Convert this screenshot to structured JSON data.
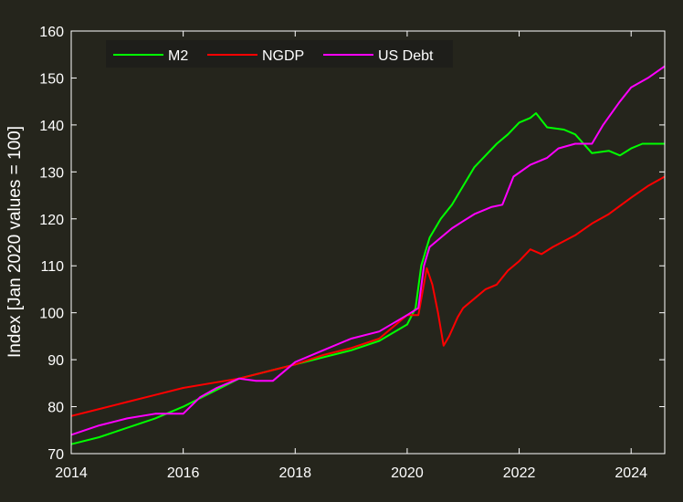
{
  "chart_data": {
    "type": "line",
    "title": "",
    "xlabel": "",
    "ylabel": "Index [Jan 2020 values = 100]",
    "xlim": [
      2014,
      2024.6
    ],
    "ylim": [
      70,
      160
    ],
    "xticks": [
      2014,
      2016,
      2018,
      2020,
      2022,
      2024
    ],
    "yticks": [
      70,
      80,
      90,
      100,
      110,
      120,
      130,
      140,
      150,
      160
    ],
    "grid": false,
    "legend_position": "top-left",
    "background_color": "#25251c",
    "axes_color": "#ffffff",
    "series": [
      {
        "name": "M2",
        "color": "#00ff00",
        "x": [
          2014.0,
          2014.5,
          2015.0,
          2015.5,
          2016.0,
          2016.5,
          2017.0,
          2017.5,
          2018.0,
          2018.5,
          2019.0,
          2019.5,
          2020.0,
          2020.15,
          2020.25,
          2020.4,
          2020.6,
          2020.8,
          2021.0,
          2021.2,
          2021.4,
          2021.6,
          2021.8,
          2022.0,
          2022.2,
          2022.3,
          2022.5,
          2022.8,
          2023.0,
          2023.3,
          2023.6,
          2023.8,
          2024.0,
          2024.2,
          2024.4,
          2024.6
        ],
        "y": [
          72,
          73.5,
          75.5,
          77.5,
          80,
          83,
          86,
          87.5,
          89,
          90.5,
          92,
          94,
          97.5,
          101,
          110,
          116,
          120,
          123,
          127,
          131,
          133.5,
          136,
          138,
          140.5,
          141.5,
          142.5,
          139.5,
          139,
          138,
          134,
          134.5,
          133.5,
          135,
          136,
          136,
          136
        ]
      },
      {
        "name": "NGDP",
        "color": "#ff0000",
        "x": [
          2014.0,
          2014.5,
          2015.0,
          2015.5,
          2016.0,
          2016.5,
          2017.0,
          2017.5,
          2018.0,
          2018.5,
          2019.0,
          2019.5,
          2020.0,
          2020.2,
          2020.35,
          2020.45,
          2020.55,
          2020.65,
          2020.75,
          2020.9,
          2021.0,
          2021.2,
          2021.4,
          2021.6,
          2021.8,
          2022.0,
          2022.2,
          2022.4,
          2022.6,
          2023.0,
          2023.3,
          2023.6,
          2024.0,
          2024.3,
          2024.6
        ],
        "y": [
          78,
          79.5,
          81,
          82.5,
          84,
          85,
          86,
          87.5,
          89,
          91,
          92.5,
          94.5,
          99.5,
          99.5,
          109.5,
          106,
          100,
          93,
          95,
          99,
          101,
          103,
          105,
          106,
          109,
          111,
          113.5,
          112.5,
          114,
          116.5,
          119,
          121,
          124.5,
          127,
          129
        ]
      },
      {
        "name": "US Debt",
        "color": "#ff00ff",
        "x": [
          2014.0,
          2014.5,
          2015.0,
          2015.5,
          2016.0,
          2016.3,
          2016.6,
          2017.0,
          2017.3,
          2017.6,
          2018.0,
          2018.5,
          2019.0,
          2019.5,
          2020.0,
          2020.2,
          2020.3,
          2020.4,
          2020.6,
          2020.8,
          2021.0,
          2021.2,
          2021.5,
          2021.7,
          2021.9,
          2022.2,
          2022.5,
          2022.7,
          2023.0,
          2023.3,
          2023.5,
          2023.8,
          2024.0,
          2024.3,
          2024.6
        ],
        "y": [
          74,
          76,
          77.5,
          78.5,
          78.5,
          82,
          84,
          86,
          85.5,
          85.5,
          89.5,
          92,
          94.5,
          96,
          99.5,
          101,
          110,
          114,
          116,
          118,
          119.5,
          121,
          122.5,
          123,
          129,
          131.5,
          133,
          135,
          136,
          136,
          140,
          145,
          148,
          150,
          152.5
        ]
      }
    ]
  }
}
